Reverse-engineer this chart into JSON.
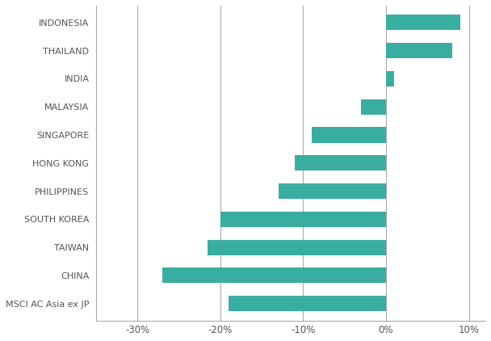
{
  "categories": [
    "MSCI AC Asia ex JP",
    "CHINA",
    "TAIWAN",
    "SOUTH KOREA",
    "PHILIPPINES",
    "HONG KONG",
    "SINGAPORE",
    "MALAYSIA",
    "INDIA",
    "THAILAND",
    "INDONESIA"
  ],
  "values": [
    -19.0,
    -27.0,
    -21.5,
    -20.0,
    -13.0,
    -11.0,
    -9.0,
    -3.0,
    1.0,
    8.0,
    9.0
  ],
  "bar_color": "#3aada1",
  "xlim": [
    -35,
    12
  ],
  "xticks": [
    -30,
    -20,
    -10,
    0,
    10
  ],
  "xtick_labels": [
    "-30%",
    "-20%",
    "-10%",
    "0%",
    "10%"
  ],
  "background_color": "#ffffff",
  "grid_color": "#aaaaaa",
  "text_color": "#555555",
  "bar_height": 0.55,
  "label_fontsize": 8.0,
  "tick_fontsize": 8.5
}
